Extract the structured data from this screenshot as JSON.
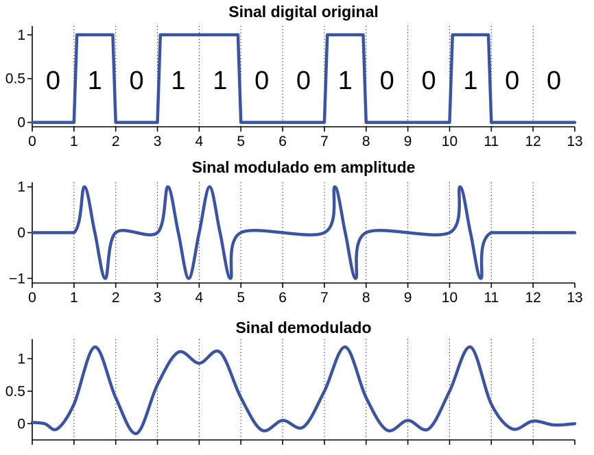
{
  "colors": {
    "series": "#3a53a4",
    "axis": "#000000",
    "background": "#ffffff"
  },
  "chart_data": [
    {
      "type": "line",
      "title": "Sinal digital original",
      "xlim": [
        0,
        13
      ],
      "ylim": [
        -0.05,
        1.1
      ],
      "xticks": [
        0,
        1,
        2,
        3,
        4,
        5,
        6,
        7,
        8,
        9,
        10,
        11,
        12,
        13
      ],
      "yticks": [
        0,
        0.5,
        1
      ],
      "ytick_labels": [
        "0",
        "0.5",
        "1"
      ],
      "grid": "vertical dotted at integer x",
      "bits": [
        "0",
        "1",
        "0",
        "1",
        "1",
        "0",
        "0",
        "1",
        "0",
        "0",
        "1",
        "0",
        "0"
      ],
      "series": [
        {
          "x": [
            0,
            1,
            1.07,
            1.93,
            2,
            3,
            3.07,
            4.93,
            5,
            7,
            7.07,
            7.93,
            8,
            10,
            10.07,
            10.93,
            11,
            13
          ],
          "y": [
            0,
            0,
            1,
            1,
            0,
            0,
            1,
            1,
            0,
            0,
            1,
            1,
            0,
            0,
            1,
            1,
            0,
            0
          ]
        }
      ]
    },
    {
      "type": "line",
      "title": "Sinal modulado em amplitude",
      "xlim": [
        0,
        13
      ],
      "ylim": [
        -1.1,
        1.1
      ],
      "xticks": [
        0,
        1,
        2,
        3,
        4,
        5,
        6,
        7,
        8,
        9,
        10,
        11,
        12,
        13
      ],
      "yticks": [
        -1,
        0,
        1
      ],
      "ytick_labels": [
        "−1",
        "0",
        "1"
      ],
      "grid": "vertical dotted at integer x",
      "series": [
        {
          "x": [
            0,
            1,
            1.25,
            1.5,
            1.75,
            2,
            3,
            3.25,
            3.5,
            3.75,
            4,
            4.25,
            4.5,
            4.75,
            5,
            7,
            7.25,
            7.5,
            7.75,
            8,
            10,
            10.25,
            10.5,
            10.75,
            11,
            13
          ],
          "y": [
            0,
            0,
            1,
            0,
            -1,
            0,
            0,
            1,
            0,
            -1,
            0,
            1,
            0,
            -1,
            0,
            0,
            1,
            0,
            -1,
            0,
            0,
            1,
            0,
            -1,
            0,
            0
          ]
        }
      ]
    },
    {
      "type": "line",
      "title": "Sinal demodulado",
      "xlim": [
        0,
        13
      ],
      "ylim": [
        -0.25,
        1.3
      ],
      "xticks": [
        0,
        1,
        2,
        3,
        4,
        5,
        6,
        7,
        8,
        9,
        10,
        11,
        12,
        13
      ],
      "yticks": [
        0,
        0.5,
        1
      ],
      "ytick_labels": [
        "0",
        "0.5",
        "1"
      ],
      "grid": "vertical dotted at integer x",
      "series": [
        {
          "x": [
            0,
            0.3,
            0.6,
            1,
            1.5,
            2,
            2.5,
            3,
            3.5,
            4,
            4.5,
            5,
            5.5,
            6,
            6.5,
            7,
            7.5,
            8,
            8.5,
            9,
            9.5,
            10,
            10.5,
            11,
            11.5,
            12,
            12.5,
            13
          ],
          "y": [
            0.02,
            0.0,
            -0.08,
            0.3,
            1.18,
            0.4,
            -0.15,
            0.6,
            1.1,
            0.93,
            1.1,
            0.4,
            -0.1,
            0.05,
            -0.05,
            0.5,
            1.18,
            0.4,
            -0.1,
            0.05,
            -0.08,
            0.5,
            1.18,
            0.3,
            -0.08,
            0.04,
            -0.02,
            0.0
          ]
        }
      ]
    }
  ]
}
